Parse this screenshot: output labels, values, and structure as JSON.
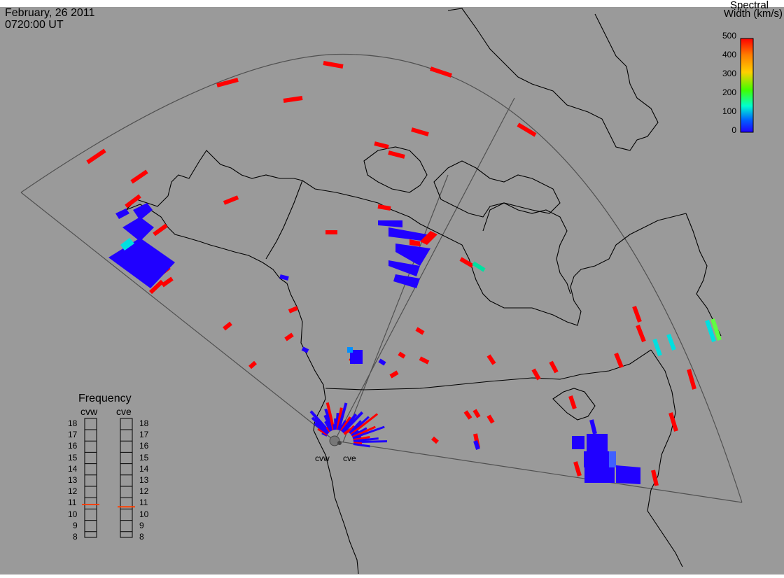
{
  "header": {
    "date": "February, 26 2011",
    "time": "0720:00 UT"
  },
  "colorbar": {
    "title_line1": "Spectral",
    "title_line2": "Width (km/s)",
    "ticks": [
      "500",
      "400",
      "300",
      "200",
      "100",
      "0"
    ],
    "stops": [
      "#ff0000",
      "#ff8000",
      "#ffd000",
      "#40ff00",
      "#00ffd0",
      "#0060ff",
      "#2000ff"
    ]
  },
  "frequency": {
    "title": "Frequency",
    "radars": [
      {
        "name": "cvw",
        "value_mhz": 10.9
      },
      {
        "name": "cve",
        "value_mhz": 10.7
      }
    ],
    "ticks": [
      "18",
      "17",
      "16",
      "15",
      "14",
      "13",
      "12",
      "11",
      "10",
      "9",
      "8"
    ],
    "marker_color": "#ff4000"
  },
  "sites": [
    {
      "name": "cvw"
    },
    {
      "name": "cve"
    }
  ],
  "colors": {
    "background": "#9a9a9a",
    "coast": "#000000",
    "fov": "#505050",
    "high_width": "#ff0000",
    "low_width": "#2000ff",
    "mid_width": "#00e0e0"
  }
}
